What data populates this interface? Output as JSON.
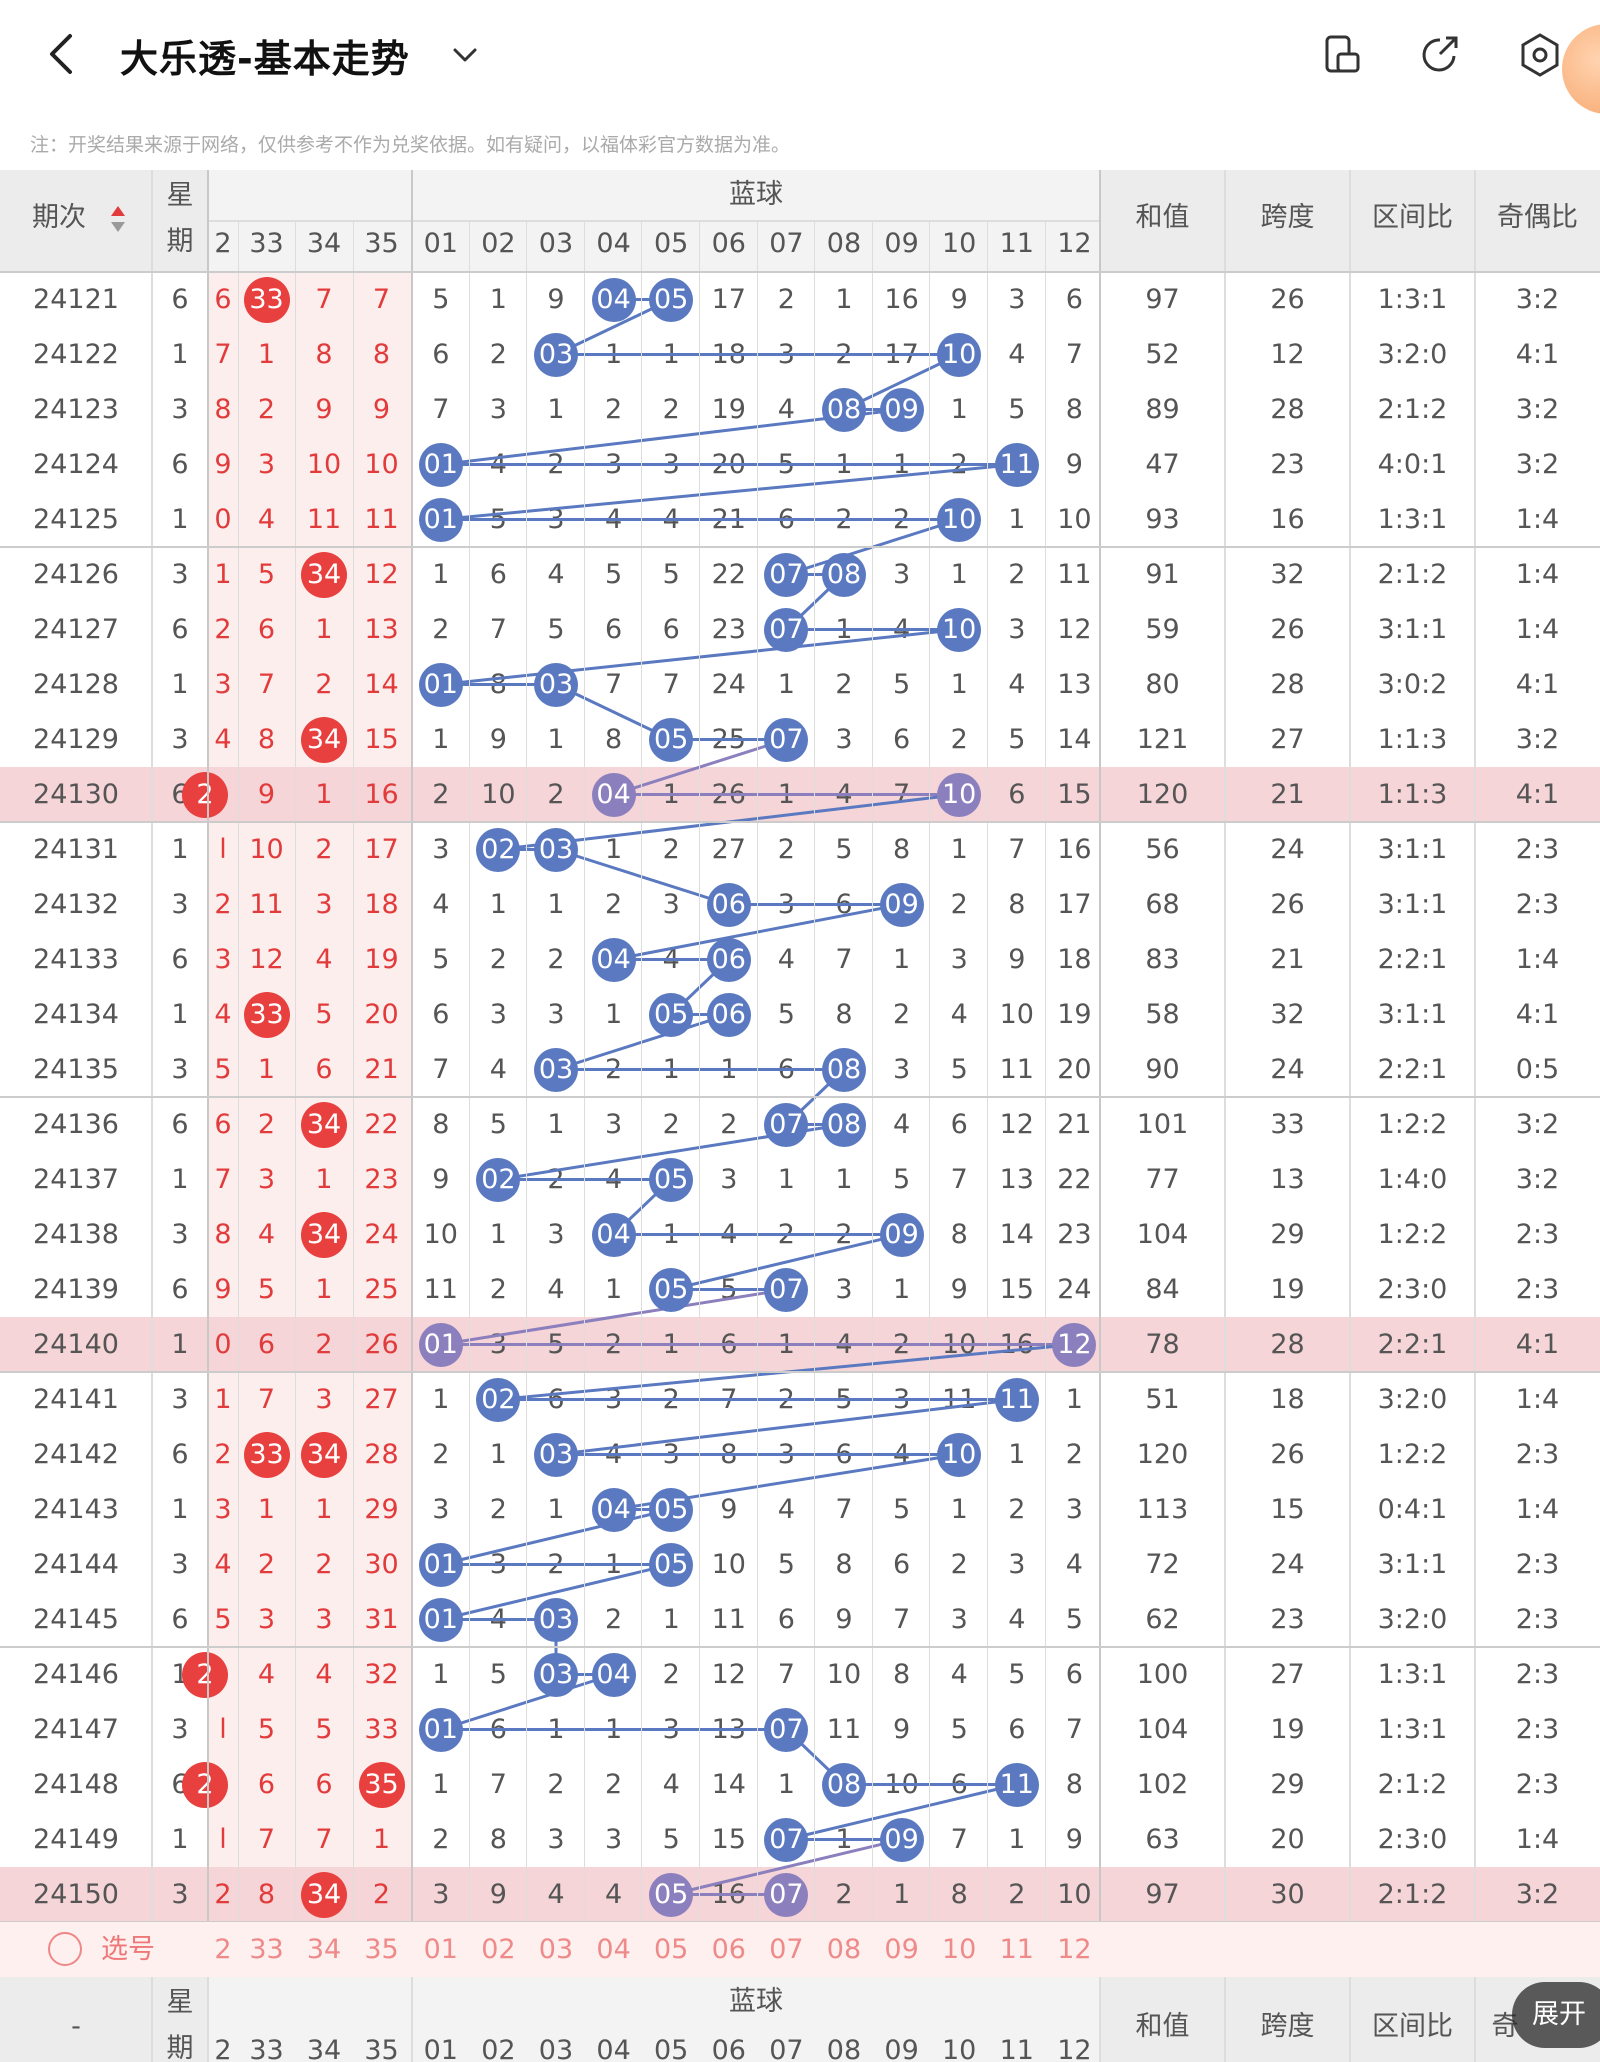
{
  "header": {
    "title": "大乐透-基本走势",
    "note": "注：开奖结果来源于网络，仅供参考不作为兑奖依据。如有疑问，以福体彩官方数据为准。"
  },
  "table": {
    "col_period": "期次",
    "col_week_top": "星",
    "col_week_bottom": "期",
    "blue_group": "蓝球",
    "col_sum": "和值",
    "col_span": "跨度",
    "col_zone": "区间比",
    "col_parity": "奇偶比",
    "col_parity_cut": "奇",
    "bottom_period": "-",
    "red_cols": [
      "2",
      "33",
      "34",
      "35"
    ],
    "blue_cols": [
      "01",
      "02",
      "03",
      "04",
      "05",
      "06",
      "07",
      "08",
      "09",
      "10",
      "11",
      "12"
    ],
    "select_label": "选号",
    "expand_label": "展开",
    "rows": [
      {
        "p": "24121",
        "w": "6",
        "r": [
          "6",
          "33",
          "7",
          "7"
        ],
        "rb": [
          1
        ],
        "b": [
          "5",
          "1",
          "9",
          "04",
          "05",
          "17",
          "2",
          "1",
          "16",
          "9",
          "3",
          "6"
        ],
        "bb": [
          3,
          4
        ],
        "s": "97",
        "sp": "26",
        "z": "1:3:1",
        "o": "3:2",
        "hl": false
      },
      {
        "p": "24122",
        "w": "1",
        "r": [
          "7",
          "1",
          "8",
          "8"
        ],
        "rb": [],
        "b": [
          "6",
          "2",
          "03",
          "1",
          "1",
          "18",
          "3",
          "2",
          "17",
          "10",
          "4",
          "7"
        ],
        "bb": [
          2,
          9
        ],
        "s": "52",
        "sp": "12",
        "z": "3:2:0",
        "o": "4:1",
        "hl": false
      },
      {
        "p": "24123",
        "w": "3",
        "r": [
          "8",
          "2",
          "9",
          "9"
        ],
        "rb": [],
        "b": [
          "7",
          "3",
          "1",
          "2",
          "2",
          "19",
          "4",
          "08",
          "09",
          "1",
          "5",
          "8"
        ],
        "bb": [
          7,
          8
        ],
        "s": "89",
        "sp": "28",
        "z": "2:1:2",
        "o": "3:2",
        "hl": false
      },
      {
        "p": "24124",
        "w": "6",
        "r": [
          "9",
          "3",
          "10",
          "10"
        ],
        "rb": [],
        "b": [
          "01",
          "4",
          "2",
          "3",
          "3",
          "20",
          "5",
          "1",
          "1",
          "2",
          "11",
          "9"
        ],
        "bb": [
          0,
          10
        ],
        "s": "47",
        "sp": "23",
        "z": "4:0:1",
        "o": "3:2",
        "hl": false
      },
      {
        "p": "24125",
        "w": "1",
        "r": [
          "0",
          "4",
          "11",
          "11"
        ],
        "rb": [],
        "b": [
          "01",
          "5",
          "3",
          "4",
          "4",
          "21",
          "6",
          "2",
          "2",
          "10",
          "1",
          "10"
        ],
        "bb": [
          0,
          9
        ],
        "s": "93",
        "sp": "16",
        "z": "1:3:1",
        "o": "1:4",
        "hl": false
      },
      {
        "p": "24126",
        "w": "3",
        "r": [
          "1",
          "5",
          "34",
          "12"
        ],
        "rb": [
          2
        ],
        "b": [
          "1",
          "6",
          "4",
          "5",
          "5",
          "22",
          "07",
          "08",
          "3",
          "1",
          "2",
          "11"
        ],
        "bb": [
          6,
          7
        ],
        "s": "91",
        "sp": "32",
        "z": "2:1:2",
        "o": "1:4",
        "hl": false
      },
      {
        "p": "24127",
        "w": "6",
        "r": [
          "2",
          "6",
          "1",
          "13"
        ],
        "rb": [],
        "b": [
          "2",
          "7",
          "5",
          "6",
          "6",
          "23",
          "07",
          "1",
          "4",
          "10",
          "3",
          "12"
        ],
        "bb": [
          6,
          9
        ],
        "s": "59",
        "sp": "26",
        "z": "3:1:1",
        "o": "1:4",
        "hl": false
      },
      {
        "p": "24128",
        "w": "1",
        "r": [
          "3",
          "7",
          "2",
          "14"
        ],
        "rb": [],
        "b": [
          "01",
          "8",
          "03",
          "7",
          "7",
          "24",
          "1",
          "2",
          "5",
          "1",
          "4",
          "13"
        ],
        "bb": [
          0,
          2
        ],
        "s": "80",
        "sp": "28",
        "z": "3:0:2",
        "o": "4:1",
        "hl": false
      },
      {
        "p": "24129",
        "w": "3",
        "r": [
          "4",
          "8",
          "34",
          "15"
        ],
        "rb": [
          2
        ],
        "b": [
          "1",
          "9",
          "1",
          "8",
          "05",
          "25",
          "07",
          "3",
          "6",
          "2",
          "5",
          "14"
        ],
        "bb": [
          4,
          6
        ],
        "s": "121",
        "sp": "27",
        "z": "1:1:3",
        "o": "3:2",
        "hl": false
      },
      {
        "p": "24130",
        "w": "6",
        "r": [
          "2",
          "9",
          "1",
          "16"
        ],
        "rb": [
          0
        ],
        "b": [
          "2",
          "10",
          "2",
          "04",
          "1",
          "26",
          "1",
          "4",
          "7",
          "10",
          "6",
          "15"
        ],
        "bb": [
          3,
          9
        ],
        "s": "120",
        "sp": "21",
        "z": "1:1:3",
        "o": "4:1",
        "hl": true
      },
      {
        "p": "24131",
        "w": "1",
        "r": [
          "l",
          "10",
          "2",
          "17"
        ],
        "rb": [],
        "b": [
          "3",
          "02",
          "03",
          "1",
          "2",
          "27",
          "2",
          "5",
          "8",
          "1",
          "7",
          "16"
        ],
        "bb": [
          1,
          2
        ],
        "s": "56",
        "sp": "24",
        "z": "3:1:1",
        "o": "2:3",
        "hl": false
      },
      {
        "p": "24132",
        "w": "3",
        "r": [
          "2",
          "11",
          "3",
          "18"
        ],
        "rb": [],
        "b": [
          "4",
          "1",
          "1",
          "2",
          "3",
          "06",
          "3",
          "6",
          "09",
          "2",
          "8",
          "17"
        ],
        "bb": [
          5,
          8
        ],
        "s": "68",
        "sp": "26",
        "z": "3:1:1",
        "o": "2:3",
        "hl": false
      },
      {
        "p": "24133",
        "w": "6",
        "r": [
          "3",
          "12",
          "4",
          "19"
        ],
        "rb": [],
        "b": [
          "5",
          "2",
          "2",
          "04",
          "4",
          "06",
          "4",
          "7",
          "1",
          "3",
          "9",
          "18"
        ],
        "bb": [
          3,
          5
        ],
        "s": "83",
        "sp": "21",
        "z": "2:2:1",
        "o": "1:4",
        "hl": false
      },
      {
        "p": "24134",
        "w": "1",
        "r": [
          "4",
          "33",
          "5",
          "20"
        ],
        "rb": [
          1
        ],
        "b": [
          "6",
          "3",
          "3",
          "1",
          "05",
          "06",
          "5",
          "8",
          "2",
          "4",
          "10",
          "19"
        ],
        "bb": [
          4,
          5
        ],
        "s": "58",
        "sp": "32",
        "z": "3:1:1",
        "o": "4:1",
        "hl": false
      },
      {
        "p": "24135",
        "w": "3",
        "r": [
          "5",
          "1",
          "6",
          "21"
        ],
        "rb": [],
        "b": [
          "7",
          "4",
          "03",
          "2",
          "1",
          "1",
          "6",
          "08",
          "3",
          "5",
          "11",
          "20"
        ],
        "bb": [
          2,
          7
        ],
        "s": "90",
        "sp": "24",
        "z": "2:2:1",
        "o": "0:5",
        "hl": false
      },
      {
        "p": "24136",
        "w": "6",
        "r": [
          "6",
          "2",
          "34",
          "22"
        ],
        "rb": [
          2
        ],
        "b": [
          "8",
          "5",
          "1",
          "3",
          "2",
          "2",
          "07",
          "08",
          "4",
          "6",
          "12",
          "21"
        ],
        "bb": [
          6,
          7
        ],
        "s": "101",
        "sp": "33",
        "z": "1:2:2",
        "o": "3:2",
        "hl": false
      },
      {
        "p": "24137",
        "w": "1",
        "r": [
          "7",
          "3",
          "1",
          "23"
        ],
        "rb": [],
        "b": [
          "9",
          "02",
          "2",
          "4",
          "05",
          "3",
          "1",
          "1",
          "5",
          "7",
          "13",
          "22"
        ],
        "bb": [
          1,
          4
        ],
        "s": "77",
        "sp": "13",
        "z": "1:4:0",
        "o": "3:2",
        "hl": false
      },
      {
        "p": "24138",
        "w": "3",
        "r": [
          "8",
          "4",
          "34",
          "24"
        ],
        "rb": [
          2
        ],
        "b": [
          "10",
          "1",
          "3",
          "04",
          "1",
          "4",
          "2",
          "2",
          "09",
          "8",
          "14",
          "23"
        ],
        "bb": [
          3,
          8
        ],
        "s": "104",
        "sp": "29",
        "z": "1:2:2",
        "o": "2:3",
        "hl": false
      },
      {
        "p": "24139",
        "w": "6",
        "r": [
          "9",
          "5",
          "1",
          "25"
        ],
        "rb": [],
        "b": [
          "11",
          "2",
          "4",
          "1",
          "05",
          "5",
          "07",
          "3",
          "1",
          "9",
          "15",
          "24"
        ],
        "bb": [
          4,
          6
        ],
        "s": "84",
        "sp": "19",
        "z": "2:3:0",
        "o": "2:3",
        "hl": false
      },
      {
        "p": "24140",
        "w": "1",
        "r": [
          "0",
          "6",
          "2",
          "26"
        ],
        "rb": [],
        "b": [
          "01",
          "3",
          "5",
          "2",
          "1",
          "6",
          "1",
          "4",
          "2",
          "10",
          "16",
          "12"
        ],
        "bb": [
          0,
          11
        ],
        "s": "78",
        "sp": "28",
        "z": "2:2:1",
        "o": "4:1",
        "hl": true
      },
      {
        "p": "24141",
        "w": "3",
        "r": [
          "1",
          "7",
          "3",
          "27"
        ],
        "rb": [],
        "b": [
          "1",
          "02",
          "6",
          "3",
          "2",
          "7",
          "2",
          "5",
          "3",
          "11",
          "11",
          "1"
        ],
        "bb": [
          1,
          10
        ],
        "s": "51",
        "sp": "18",
        "z": "3:2:0",
        "o": "1:4",
        "hl": false
      },
      {
        "p": "24142",
        "w": "6",
        "r": [
          "2",
          "33",
          "34",
          "28"
        ],
        "rb": [
          1,
          2
        ],
        "b": [
          "2",
          "1",
          "03",
          "4",
          "3",
          "8",
          "3",
          "6",
          "4",
          "10",
          "1",
          "2"
        ],
        "bb": [
          2,
          9
        ],
        "s": "120",
        "sp": "26",
        "z": "1:2:2",
        "o": "2:3",
        "hl": false
      },
      {
        "p": "24143",
        "w": "1",
        "r": [
          "3",
          "1",
          "1",
          "29"
        ],
        "rb": [],
        "b": [
          "3",
          "2",
          "1",
          "04",
          "05",
          "9",
          "4",
          "7",
          "5",
          "1",
          "2",
          "3"
        ],
        "bb": [
          3,
          4
        ],
        "s": "113",
        "sp": "15",
        "z": "0:4:1",
        "o": "1:4",
        "hl": false
      },
      {
        "p": "24144",
        "w": "3",
        "r": [
          "4",
          "2",
          "2",
          "30"
        ],
        "rb": [],
        "b": [
          "01",
          "3",
          "2",
          "1",
          "05",
          "10",
          "5",
          "8",
          "6",
          "2",
          "3",
          "4"
        ],
        "bb": [
          0,
          4
        ],
        "s": "72",
        "sp": "24",
        "z": "3:1:1",
        "o": "2:3",
        "hl": false
      },
      {
        "p": "24145",
        "w": "6",
        "r": [
          "5",
          "3",
          "3",
          "31"
        ],
        "rb": [],
        "b": [
          "01",
          "4",
          "03",
          "2",
          "1",
          "11",
          "6",
          "9",
          "7",
          "3",
          "4",
          "5"
        ],
        "bb": [
          0,
          2
        ],
        "s": "62",
        "sp": "23",
        "z": "3:2:0",
        "o": "2:3",
        "hl": false
      },
      {
        "p": "24146",
        "w": "1",
        "r": [
          "2",
          "4",
          "4",
          "32"
        ],
        "rb": [
          0
        ],
        "b": [
          "1",
          "5",
          "03",
          "04",
          "2",
          "12",
          "7",
          "10",
          "8",
          "4",
          "5",
          "6"
        ],
        "bb": [
          2,
          3
        ],
        "s": "100",
        "sp": "27",
        "z": "1:3:1",
        "o": "2:3",
        "hl": false
      },
      {
        "p": "24147",
        "w": "3",
        "r": [
          "l",
          "5",
          "5",
          "33"
        ],
        "rb": [],
        "b": [
          "01",
          "6",
          "1",
          "1",
          "3",
          "13",
          "07",
          "11",
          "9",
          "5",
          "6",
          "7"
        ],
        "bb": [
          0,
          6
        ],
        "s": "104",
        "sp": "19",
        "z": "1:3:1",
        "o": "2:3",
        "hl": false
      },
      {
        "p": "24148",
        "w": "6",
        "r": [
          "2",
          "6",
          "6",
          "35"
        ],
        "rb": [
          0,
          3
        ],
        "b": [
          "1",
          "7",
          "2",
          "2",
          "4",
          "14",
          "1",
          "08",
          "10",
          "6",
          "11",
          "8"
        ],
        "bb": [
          7,
          10
        ],
        "s": "102",
        "sp": "29",
        "z": "2:1:2",
        "o": "2:3",
        "hl": false
      },
      {
        "p": "24149",
        "w": "1",
        "r": [
          "l",
          "7",
          "7",
          "1"
        ],
        "rb": [],
        "b": [
          "2",
          "8",
          "3",
          "3",
          "5",
          "15",
          "07",
          "1",
          "09",
          "7",
          "1",
          "9"
        ],
        "bb": [
          6,
          8
        ],
        "s": "63",
        "sp": "20",
        "z": "2:3:0",
        "o": "1:4",
        "hl": false
      },
      {
        "p": "24150",
        "w": "3",
        "r": [
          "2",
          "8",
          "34",
          "2"
        ],
        "rb": [
          2
        ],
        "b": [
          "3",
          "9",
          "4",
          "4",
          "05",
          "16",
          "07",
          "2",
          "1",
          "8",
          "2",
          "10"
        ],
        "bb": [
          4,
          6
        ],
        "s": "97",
        "sp": "30",
        "z": "2:1:2",
        "o": "3:2",
        "hl": true
      }
    ]
  },
  "colors": {
    "red_ball": "#e8403e",
    "blue_ball": "#5a79c1",
    "highlight_ball": "#8c7fbd",
    "highlight_row": "#f5d5d8",
    "red_text": "#e23b3b"
  },
  "icons": [
    "back-arrow-icon",
    "chevron-down-icon",
    "tablet-icon",
    "share-icon",
    "settings-hexagon-icon",
    "avatar-icon",
    "select-radio-icon"
  ]
}
